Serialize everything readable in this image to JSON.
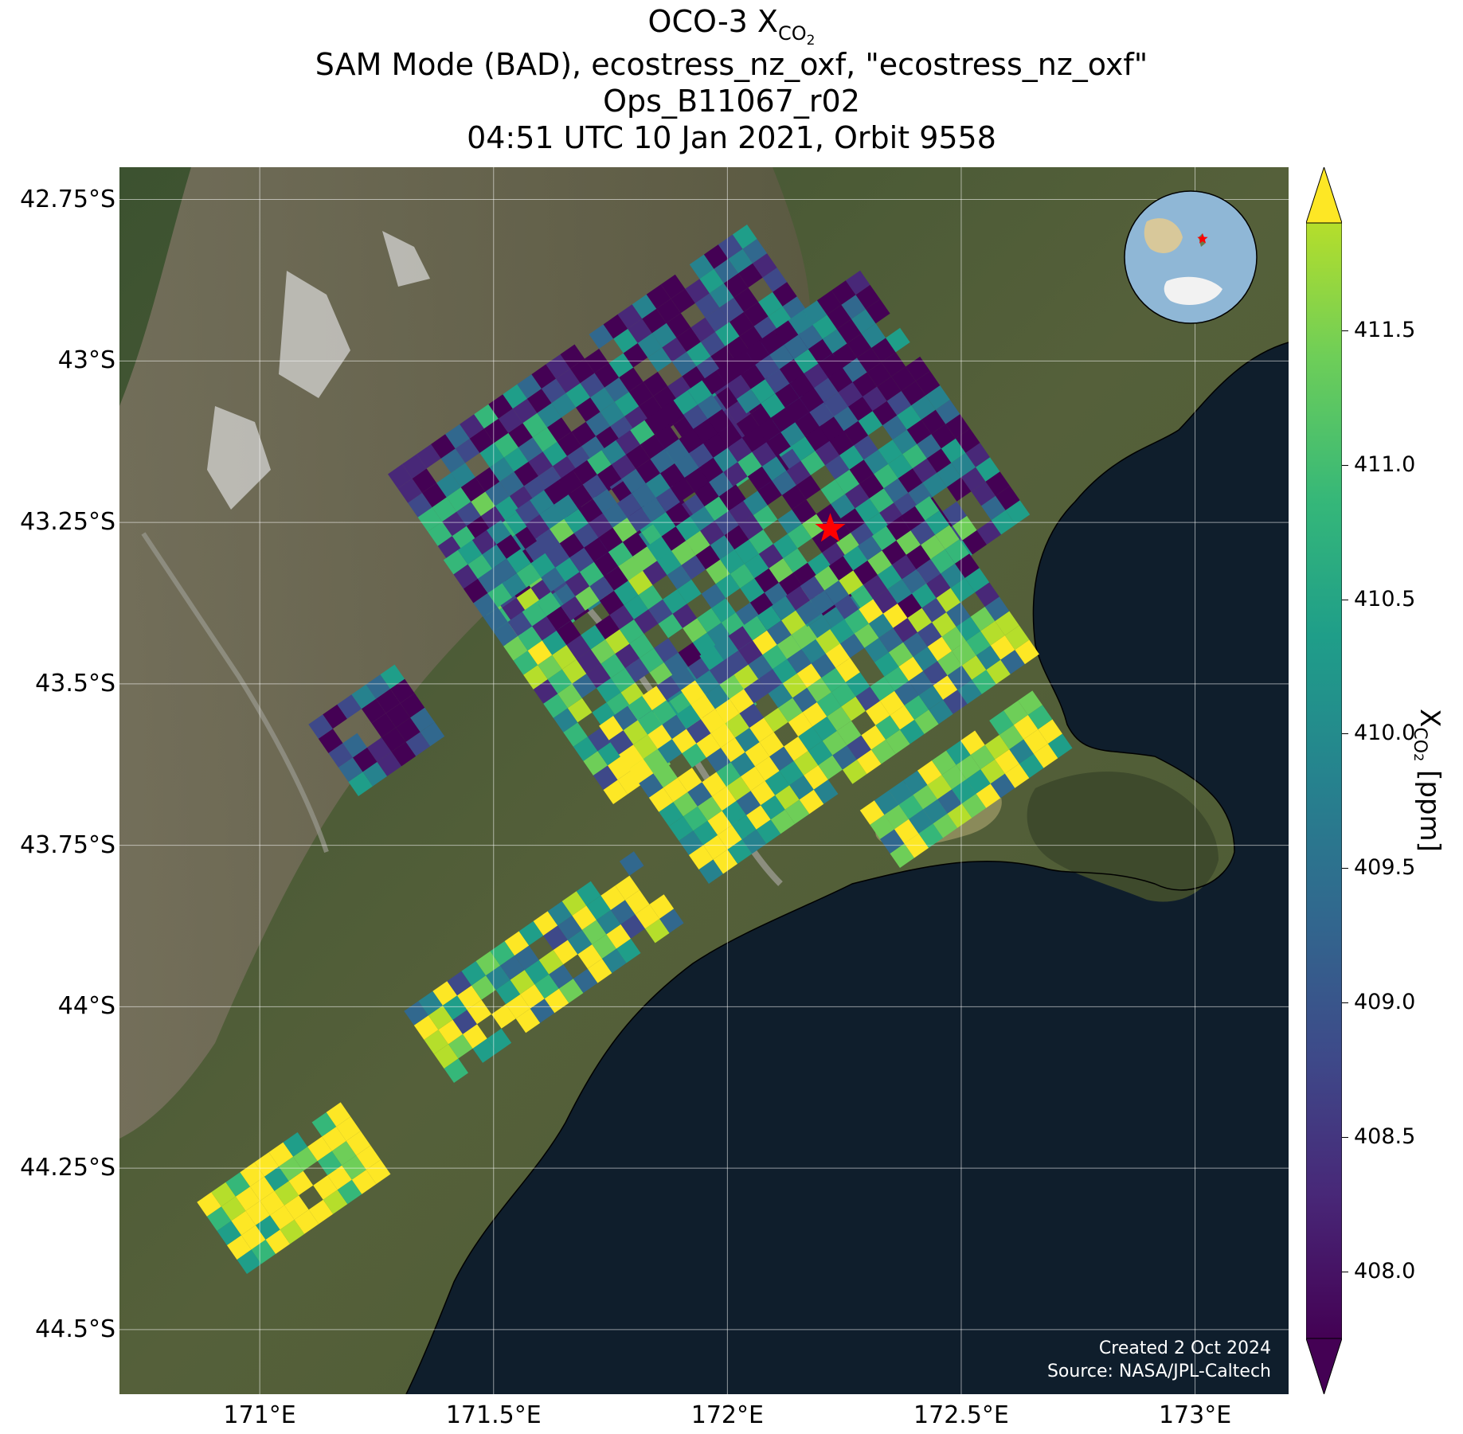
{
  "title": {
    "line1_prefix": "OCO-3 X",
    "line1_sub": "CO",
    "line1_sub2": "2",
    "line2": "SAM Mode (BAD), ecostress_nz_oxf, \"ecostress_nz_oxf\"",
    "line3": "Ops_B11067_r02",
    "line4": "04:51 UTC 10 Jan 2021, Orbit 9558"
  },
  "map": {
    "lon_range": [
      170.7,
      173.2
    ],
    "lat_range": [
      -44.6,
      -42.7
    ],
    "y_ticks": [
      "42.75°S",
      "43°S",
      "43.25°S",
      "43.5°S",
      "43.75°S",
      "44°S",
      "44.25°S",
      "44.5°S"
    ],
    "y_tick_values": [
      -42.75,
      -43.0,
      -43.25,
      -43.5,
      -43.75,
      -44.0,
      -44.25,
      -44.5
    ],
    "x_ticks": [
      "171°E",
      "171.5°E",
      "172°E",
      "172.5°E",
      "173°E"
    ],
    "x_tick_values": [
      171.0,
      171.5,
      172.0,
      172.5,
      173.0
    ],
    "grid": true,
    "target_marker": {
      "lon": 172.22,
      "lat": -43.26,
      "shape": "star",
      "color": "#ff0000"
    },
    "credits": {
      "line1": "Created 2 Oct 2024",
      "line2": "Source: NASA/JPL-Caltech"
    },
    "colors": {
      "land": "#4a5a30",
      "ocean": "#0f1e2c",
      "mountains": "#8a7f6a",
      "snow": "#e8e8e8",
      "lake": "#8a8a5a"
    }
  },
  "colorbar": {
    "label_prefix": "X",
    "label_sub": "CO",
    "label_sub2": "2",
    "label_suffix": " [ppm]",
    "range": [
      407.75,
      411.9
    ],
    "ticks": [
      "408.0",
      "408.5",
      "409.0",
      "409.5",
      "410.0",
      "410.5",
      "411.0",
      "411.5"
    ],
    "tick_values": [
      408.0,
      408.5,
      409.0,
      409.5,
      410.0,
      410.5,
      411.0,
      411.5
    ],
    "colormap": "viridis",
    "extend": "both"
  },
  "inset_globe": {
    "marker_color": "#ff0000"
  }
}
